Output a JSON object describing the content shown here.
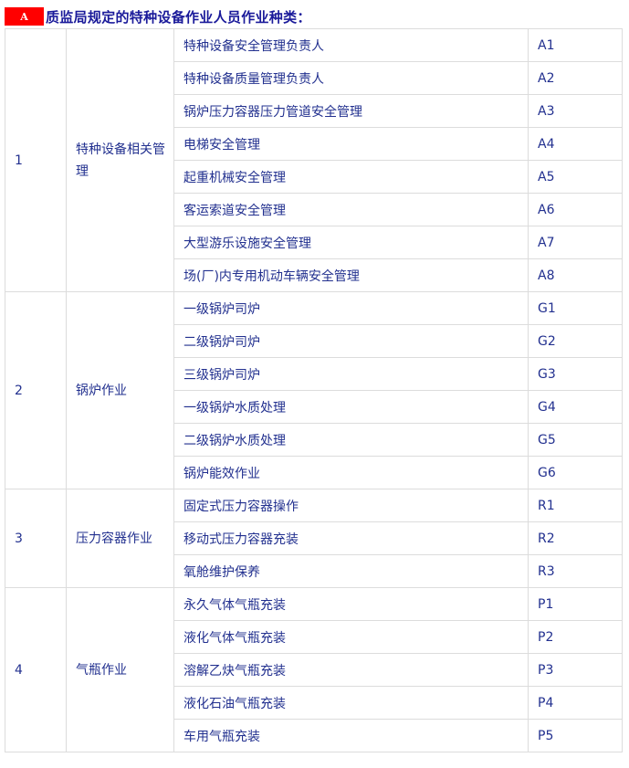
{
  "heading": {
    "badge": "A",
    "title": "质监局规定的特种设备作业人员作业种类："
  },
  "groups": [
    {
      "no": "1",
      "category": "特种设备相关管理",
      "items": [
        {
          "name": "特种设备安全管理负责人",
          "code": "A1"
        },
        {
          "name": "特种设备质量管理负责人",
          "code": "A2"
        },
        {
          "name": "锅炉压力容器压力管道安全管理",
          "code": "A3"
        },
        {
          "name": "电梯安全管理",
          "code": "A4"
        },
        {
          "name": "起重机械安全管理",
          "code": "A5"
        },
        {
          "name": "客运索道安全管理",
          "code": "A6"
        },
        {
          "name": "大型游乐设施安全管理",
          "code": "A7"
        },
        {
          "name": "场(厂)内专用机动车辆安全管理",
          "code": "A8"
        }
      ]
    },
    {
      "no": "2",
      "category": "锅炉作业",
      "items": [
        {
          "name": "一级锅炉司炉",
          "code": "G1"
        },
        {
          "name": "二级锅炉司炉",
          "code": "G2"
        },
        {
          "name": "三级锅炉司炉",
          "code": "G3"
        },
        {
          "name": "一级锅炉水质处理",
          "code": "G4"
        },
        {
          "name": "二级锅炉水质处理",
          "code": "G5"
        },
        {
          "name": "锅炉能效作业",
          "code": "G6"
        }
      ]
    },
    {
      "no": "3",
      "category": "压力容器作业",
      "items": [
        {
          "name": "固定式压力容器操作",
          "code": "R1"
        },
        {
          "name": "移动式压力容器充装",
          "code": "R2"
        },
        {
          "name": "氧舱维护保养",
          "code": "R3"
        }
      ]
    },
    {
      "no": "4",
      "category": "气瓶作业",
      "items": [
        {
          "name": "永久气体气瓶充装",
          "code": "P1"
        },
        {
          "name": "液化气体气瓶充装",
          "code": "P2"
        },
        {
          "name": "溶解乙炔气瓶充装",
          "code": "P3"
        },
        {
          "name": "液化石油气瓶充装",
          "code": "P4"
        },
        {
          "name": "车用气瓶充装",
          "code": "P5"
        }
      ]
    }
  ]
}
